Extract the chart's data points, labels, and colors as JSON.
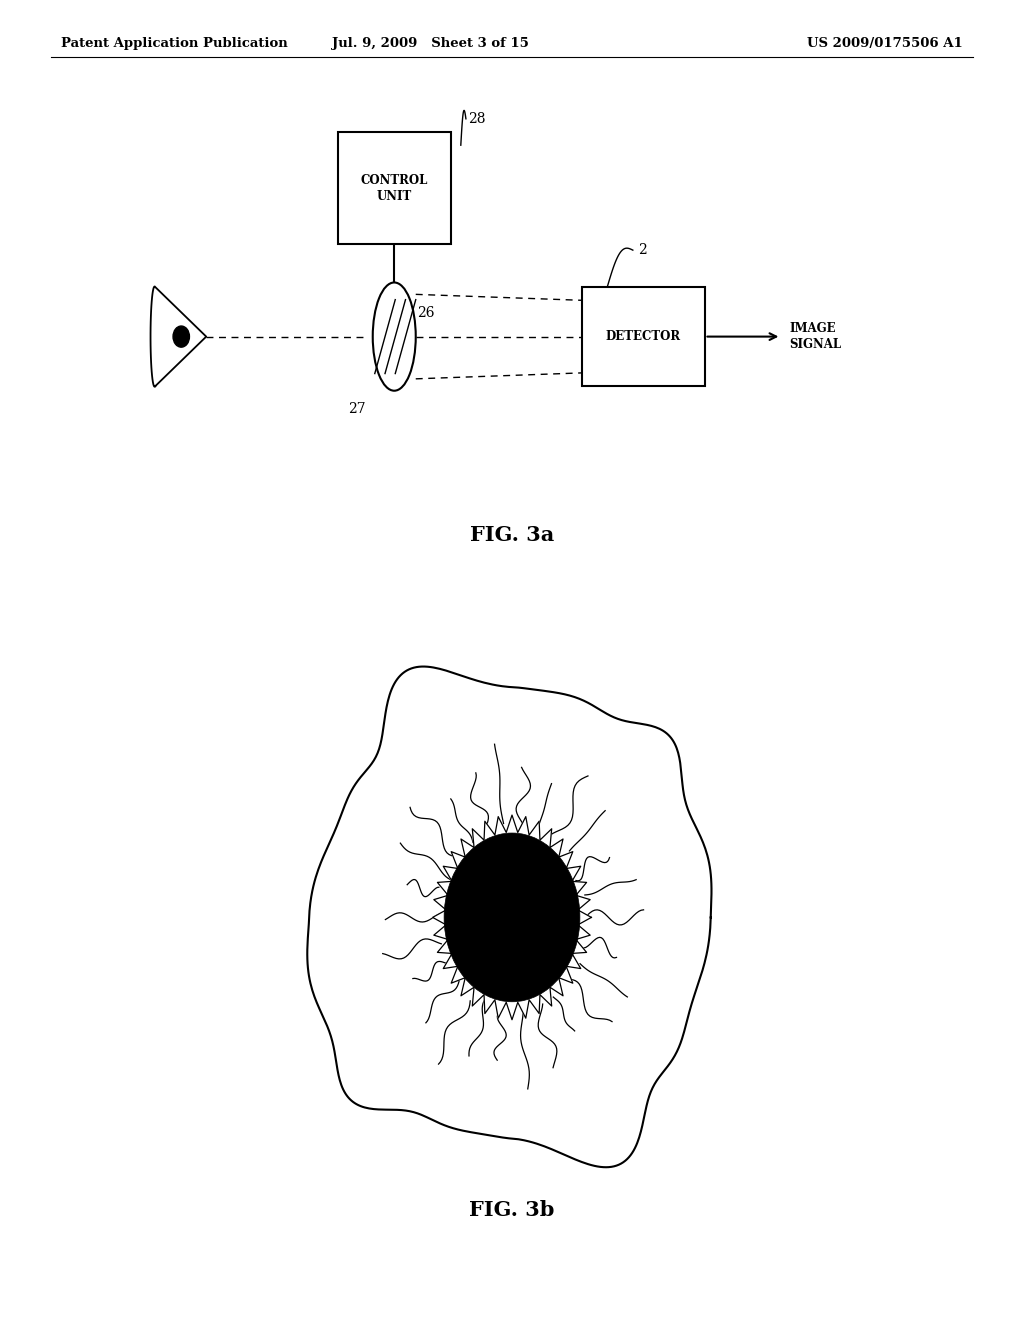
{
  "bg_color": "#ffffff",
  "header_left": "Patent Application Publication",
  "header_mid": "Jul. 9, 2009   Sheet 3 of 15",
  "header_right": "US 2009/0175506 A1",
  "fig3a_label": "FIG. 3a",
  "fig3b_label": "FIG. 3b"
}
